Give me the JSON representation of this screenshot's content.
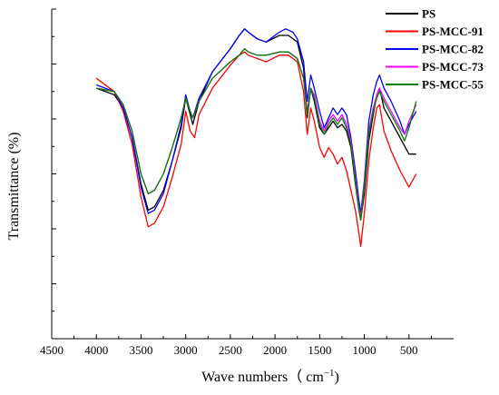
{
  "chart_data": {
    "type": "line",
    "title": "",
    "xlabel_main": "Wave numbers（ cm",
    "xlabel_sup": "−1",
    "xlabel_close": ")",
    "ylabel": "Transmittance (%)",
    "xlim": [
      4500,
      0
    ],
    "x_ticks": [
      4500,
      4000,
      3500,
      3000,
      2500,
      2000,
      1500,
      1000,
      500
    ],
    "y_ticks": 6,
    "legend_position": "top-right",
    "series": [
      {
        "name": "PS",
        "color": "#000000",
        "points": [
          [
            4000,
            0.76
          ],
          [
            3800,
            0.74
          ],
          [
            3700,
            0.7
          ],
          [
            3600,
            0.61
          ],
          [
            3500,
            0.47
          ],
          [
            3420,
            0.39
          ],
          [
            3350,
            0.4
          ],
          [
            3250,
            0.45
          ],
          [
            3150,
            0.54
          ],
          [
            3050,
            0.64
          ],
          [
            3000,
            0.73
          ],
          [
            2950,
            0.68
          ],
          [
            2920,
            0.65
          ],
          [
            2850,
            0.72
          ],
          [
            2700,
            0.81
          ],
          [
            2500,
            0.88
          ],
          [
            2400,
            0.92
          ],
          [
            2340,
            0.94
          ],
          [
            2300,
            0.93
          ],
          [
            2200,
            0.91
          ],
          [
            2100,
            0.9
          ],
          [
            1950,
            0.92
          ],
          [
            1850,
            0.92
          ],
          [
            1750,
            0.9
          ],
          [
            1680,
            0.82
          ],
          [
            1640,
            0.67
          ],
          [
            1600,
            0.76
          ],
          [
            1560,
            0.72
          ],
          [
            1500,
            0.64
          ],
          [
            1450,
            0.62
          ],
          [
            1400,
            0.64
          ],
          [
            1350,
            0.66
          ],
          [
            1300,
            0.64
          ],
          [
            1250,
            0.65
          ],
          [
            1200,
            0.63
          ],
          [
            1150,
            0.58
          ],
          [
            1100,
            0.47
          ],
          [
            1060,
            0.39
          ],
          [
            1040,
            0.36
          ],
          [
            1000,
            0.44
          ],
          [
            950,
            0.6
          ],
          [
            900,
            0.68
          ],
          [
            860,
            0.74
          ],
          [
            830,
            0.76
          ],
          [
            780,
            0.7
          ],
          [
            700,
            0.66
          ],
          [
            600,
            0.61
          ],
          [
            500,
            0.56
          ],
          [
            420,
            0.56
          ]
        ]
      },
      {
        "name": "PS-MCC-91",
        "color": "#ff0000",
        "points": [
          [
            4000,
            0.79
          ],
          [
            3800,
            0.75
          ],
          [
            3700,
            0.69
          ],
          [
            3600,
            0.59
          ],
          [
            3500,
            0.43
          ],
          [
            3420,
            0.34
          ],
          [
            3350,
            0.35
          ],
          [
            3250,
            0.4
          ],
          [
            3150,
            0.49
          ],
          [
            3050,
            0.59
          ],
          [
            3000,
            0.69
          ],
          [
            2950,
            0.63
          ],
          [
            2900,
            0.61
          ],
          [
            2850,
            0.68
          ],
          [
            2700,
            0.76
          ],
          [
            2500,
            0.83
          ],
          [
            2400,
            0.86
          ],
          [
            2340,
            0.87
          ],
          [
            2300,
            0.86
          ],
          [
            2200,
            0.85
          ],
          [
            2100,
            0.84
          ],
          [
            1950,
            0.86
          ],
          [
            1850,
            0.86
          ],
          [
            1750,
            0.84
          ],
          [
            1680,
            0.75
          ],
          [
            1640,
            0.62
          ],
          [
            1600,
            0.7
          ],
          [
            1560,
            0.66
          ],
          [
            1500,
            0.58
          ],
          [
            1450,
            0.55
          ],
          [
            1400,
            0.58
          ],
          [
            1350,
            0.56
          ],
          [
            1300,
            0.53
          ],
          [
            1250,
            0.55
          ],
          [
            1200,
            0.51
          ],
          [
            1150,
            0.45
          ],
          [
            1100,
            0.39
          ],
          [
            1060,
            0.32
          ],
          [
            1040,
            0.28
          ],
          [
            1000,
            0.38
          ],
          [
            950,
            0.54
          ],
          [
            900,
            0.64
          ],
          [
            860,
            0.7
          ],
          [
            830,
            0.71
          ],
          [
            780,
            0.63
          ],
          [
            700,
            0.57
          ],
          [
            600,
            0.51
          ],
          [
            500,
            0.46
          ],
          [
            420,
            0.5
          ]
        ]
      },
      {
        "name": "PS-MCC-82",
        "color": "#0000ff",
        "points": [
          [
            4000,
            0.77
          ],
          [
            3800,
            0.75
          ],
          [
            3700,
            0.7
          ],
          [
            3600,
            0.61
          ],
          [
            3500,
            0.46
          ],
          [
            3420,
            0.38
          ],
          [
            3350,
            0.39
          ],
          [
            3250,
            0.44
          ],
          [
            3150,
            0.54
          ],
          [
            3050,
            0.65
          ],
          [
            3000,
            0.74
          ],
          [
            2950,
            0.69
          ],
          [
            2920,
            0.67
          ],
          [
            2850,
            0.73
          ],
          [
            2700,
            0.81
          ],
          [
            2500,
            0.88
          ],
          [
            2400,
            0.92
          ],
          [
            2340,
            0.94
          ],
          [
            2300,
            0.93
          ],
          [
            2200,
            0.91
          ],
          [
            2100,
            0.9
          ],
          [
            1950,
            0.93
          ],
          [
            1880,
            0.94
          ],
          [
            1800,
            0.93
          ],
          [
            1750,
            0.91
          ],
          [
            1680,
            0.84
          ],
          [
            1640,
            0.72
          ],
          [
            1600,
            0.8
          ],
          [
            1560,
            0.76
          ],
          [
            1500,
            0.69
          ],
          [
            1450,
            0.64
          ],
          [
            1400,
            0.67
          ],
          [
            1350,
            0.7
          ],
          [
            1300,
            0.68
          ],
          [
            1250,
            0.7
          ],
          [
            1200,
            0.68
          ],
          [
            1150,
            0.61
          ],
          [
            1100,
            0.51
          ],
          [
            1060,
            0.42
          ],
          [
            1040,
            0.38
          ],
          [
            1000,
            0.48
          ],
          [
            950,
            0.66
          ],
          [
            900,
            0.74
          ],
          [
            860,
            0.78
          ],
          [
            830,
            0.8
          ],
          [
            780,
            0.76
          ],
          [
            700,
            0.72
          ],
          [
            600,
            0.66
          ],
          [
            550,
            0.62
          ],
          [
            500,
            0.65
          ],
          [
            420,
            0.69
          ]
        ]
      },
      {
        "name": "PS-MCC-73",
        "color": "#ff00ff",
        "points": [
          [
            4000,
            0.76
          ],
          [
            3800,
            0.75
          ],
          [
            3700,
            0.71
          ],
          [
            3600,
            0.63
          ],
          [
            3500,
            0.5
          ],
          [
            3420,
            0.44
          ],
          [
            3350,
            0.45
          ],
          [
            3250,
            0.5
          ],
          [
            3150,
            0.58
          ],
          [
            3050,
            0.67
          ],
          [
            3000,
            0.73
          ],
          [
            2950,
            0.69
          ],
          [
            2920,
            0.67
          ],
          [
            2850,
            0.72
          ],
          [
            2700,
            0.79
          ],
          [
            2500,
            0.84
          ],
          [
            2400,
            0.86
          ],
          [
            2340,
            0.88
          ],
          [
            2300,
            0.87
          ],
          [
            2200,
            0.86
          ],
          [
            2100,
            0.86
          ],
          [
            1950,
            0.87
          ],
          [
            1850,
            0.87
          ],
          [
            1750,
            0.85
          ],
          [
            1680,
            0.79
          ],
          [
            1640,
            0.69
          ],
          [
            1600,
            0.76
          ],
          [
            1560,
            0.74
          ],
          [
            1500,
            0.66
          ],
          [
            1450,
            0.63
          ],
          [
            1400,
            0.66
          ],
          [
            1350,
            0.68
          ],
          [
            1300,
            0.66
          ],
          [
            1250,
            0.68
          ],
          [
            1200,
            0.65
          ],
          [
            1150,
            0.6
          ],
          [
            1100,
            0.49
          ],
          [
            1060,
            0.4
          ],
          [
            1040,
            0.37
          ],
          [
            1000,
            0.47
          ],
          [
            950,
            0.63
          ],
          [
            900,
            0.7
          ],
          [
            860,
            0.74
          ],
          [
            830,
            0.76
          ],
          [
            780,
            0.73
          ],
          [
            700,
            0.69
          ],
          [
            600,
            0.64
          ],
          [
            550,
            0.62
          ],
          [
            500,
            0.66
          ],
          [
            420,
            0.71
          ]
        ]
      },
      {
        "name": "PS-MCC-55",
        "color": "#008000",
        "points": [
          [
            4000,
            0.76
          ],
          [
            3800,
            0.75
          ],
          [
            3700,
            0.71
          ],
          [
            3600,
            0.63
          ],
          [
            3500,
            0.5
          ],
          [
            3420,
            0.44
          ],
          [
            3350,
            0.45
          ],
          [
            3250,
            0.5
          ],
          [
            3150,
            0.58
          ],
          [
            3050,
            0.67
          ],
          [
            3000,
            0.73
          ],
          [
            2950,
            0.69
          ],
          [
            2920,
            0.67
          ],
          [
            2850,
            0.72
          ],
          [
            2700,
            0.79
          ],
          [
            2500,
            0.84
          ],
          [
            2400,
            0.86
          ],
          [
            2340,
            0.88
          ],
          [
            2300,
            0.87
          ],
          [
            2200,
            0.86
          ],
          [
            2100,
            0.86
          ],
          [
            1950,
            0.87
          ],
          [
            1850,
            0.87
          ],
          [
            1750,
            0.85
          ],
          [
            1680,
            0.79
          ],
          [
            1640,
            0.68
          ],
          [
            1600,
            0.76
          ],
          [
            1560,
            0.73
          ],
          [
            1500,
            0.65
          ],
          [
            1450,
            0.62
          ],
          [
            1400,
            0.65
          ],
          [
            1350,
            0.67
          ],
          [
            1300,
            0.65
          ],
          [
            1250,
            0.67
          ],
          [
            1200,
            0.64
          ],
          [
            1150,
            0.59
          ],
          [
            1100,
            0.48
          ],
          [
            1060,
            0.39
          ],
          [
            1040,
            0.36
          ],
          [
            1000,
            0.46
          ],
          [
            950,
            0.62
          ],
          [
            900,
            0.69
          ],
          [
            860,
            0.73
          ],
          [
            830,
            0.75
          ],
          [
            780,
            0.72
          ],
          [
            700,
            0.68
          ],
          [
            600,
            0.63
          ],
          [
            550,
            0.6
          ],
          [
            500,
            0.64
          ],
          [
            420,
            0.72
          ]
        ]
      }
    ]
  }
}
